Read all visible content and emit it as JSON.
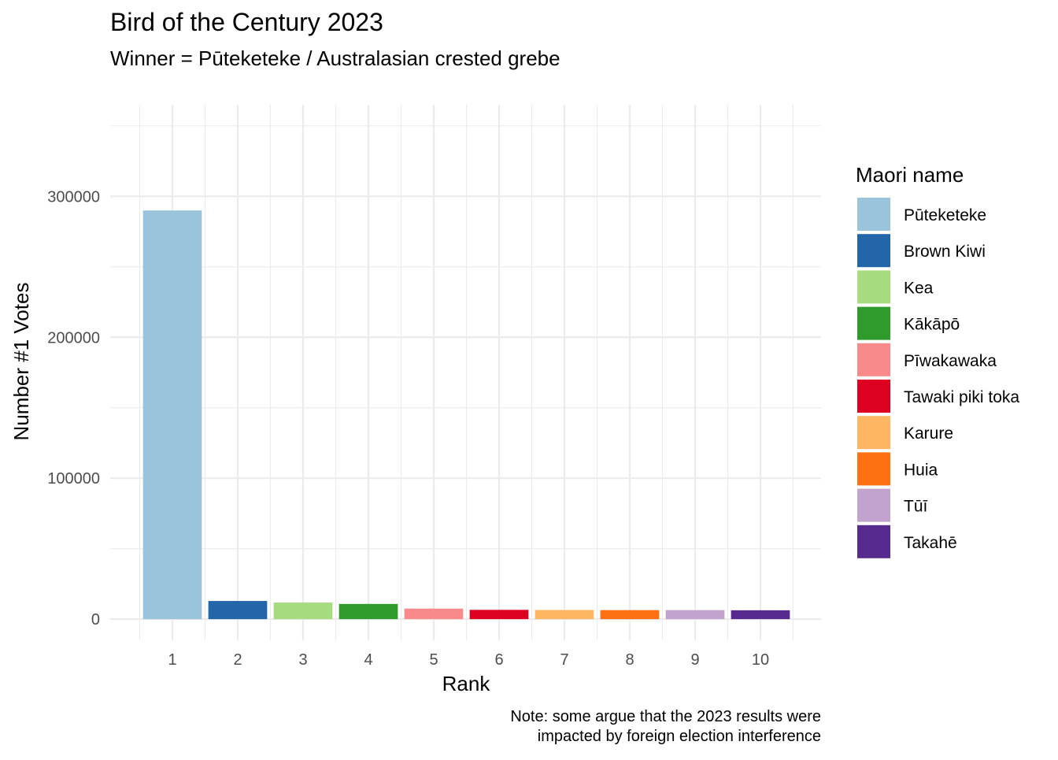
{
  "chart_data": {
    "type": "bar",
    "title": "Bird of the Century 2023",
    "subtitle": "Winner = Pūteketeke / Australasian crested grebe",
    "xlabel": "Rank",
    "ylabel": "Number #1 Votes",
    "caption": [
      "Note: some argue that the 2023 results were",
      "impacted by foreign election interference"
    ],
    "categories": [
      "1",
      "2",
      "3",
      "4",
      "5",
      "6",
      "7",
      "8",
      "9",
      "10"
    ],
    "values": [
      290000,
      12900,
      11800,
      10800,
      7500,
      6600,
      6500,
      6400,
      6400,
      6300
    ],
    "series_names": [
      "Pūteketeke",
      "Brown Kiwi",
      "Kea",
      "Kākāpō",
      "Pīwakawaka",
      "Tawaki piki toka",
      "Karure",
      "Huia",
      "Tūī",
      "Takahē"
    ],
    "colors": [
      "#9ac3dc",
      "#2266a9",
      "#a6dc7f",
      "#2f9b2c",
      "#f98a8b",
      "#dd0020",
      "#fdb762",
      "#ff7012",
      "#c1a3ce",
      "#572b8d"
    ],
    "ylim": [
      -15000,
      365000
    ],
    "yticks": [
      0,
      100000,
      200000,
      300000
    ],
    "ytick_labels": [
      "0",
      "100000",
      "200000",
      "300000"
    ],
    "grid": true,
    "legend": {
      "title": "Maori name",
      "position": "right"
    }
  }
}
